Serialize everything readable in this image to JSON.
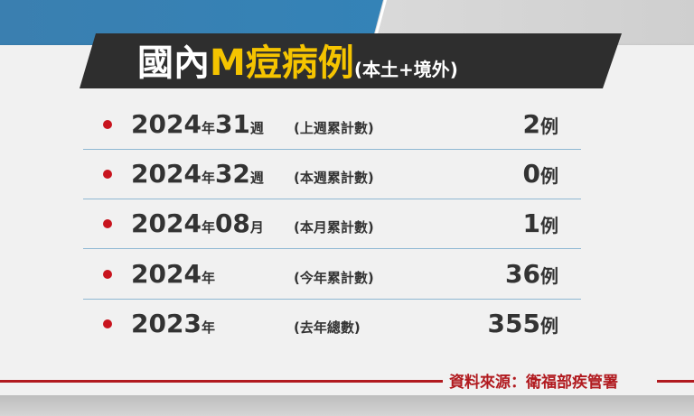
{
  "title": {
    "part1": "國內",
    "part2": "M痘病例",
    "part3": "(本土+境外)"
  },
  "rows": [
    {
      "period": "2024",
      "unit1": "年",
      "num": "31",
      "unit2": "週",
      "note": "(上週累計數)",
      "value": "2",
      "value_unit": "例"
    },
    {
      "period": "2024",
      "unit1": "年",
      "num": "32",
      "unit2": "週",
      "note": "(本週累計數)",
      "value": "0",
      "value_unit": "例"
    },
    {
      "period": "2024",
      "unit1": "年",
      "num": "08",
      "unit2": "月",
      "note": "(本月累計數)",
      "value": "1",
      "value_unit": "例"
    },
    {
      "period": "2024",
      "unit1": "年",
      "num": "",
      "unit2": "",
      "note": "(今年累計數)",
      "value": "36",
      "value_unit": "例"
    },
    {
      "period": "2023",
      "unit1": "年",
      "num": "",
      "unit2": "",
      "note": "(去年總數)",
      "value": "355",
      "value_unit": "例"
    }
  ],
  "source": "資料來源：衛福部疾管署",
  "colors": {
    "accent_yellow": "#f5c400",
    "bullet_red": "#c8141e",
    "source_red": "#b11a1f",
    "title_bar": "#2e2e2e",
    "background_blue": "#2f86bd"
  }
}
